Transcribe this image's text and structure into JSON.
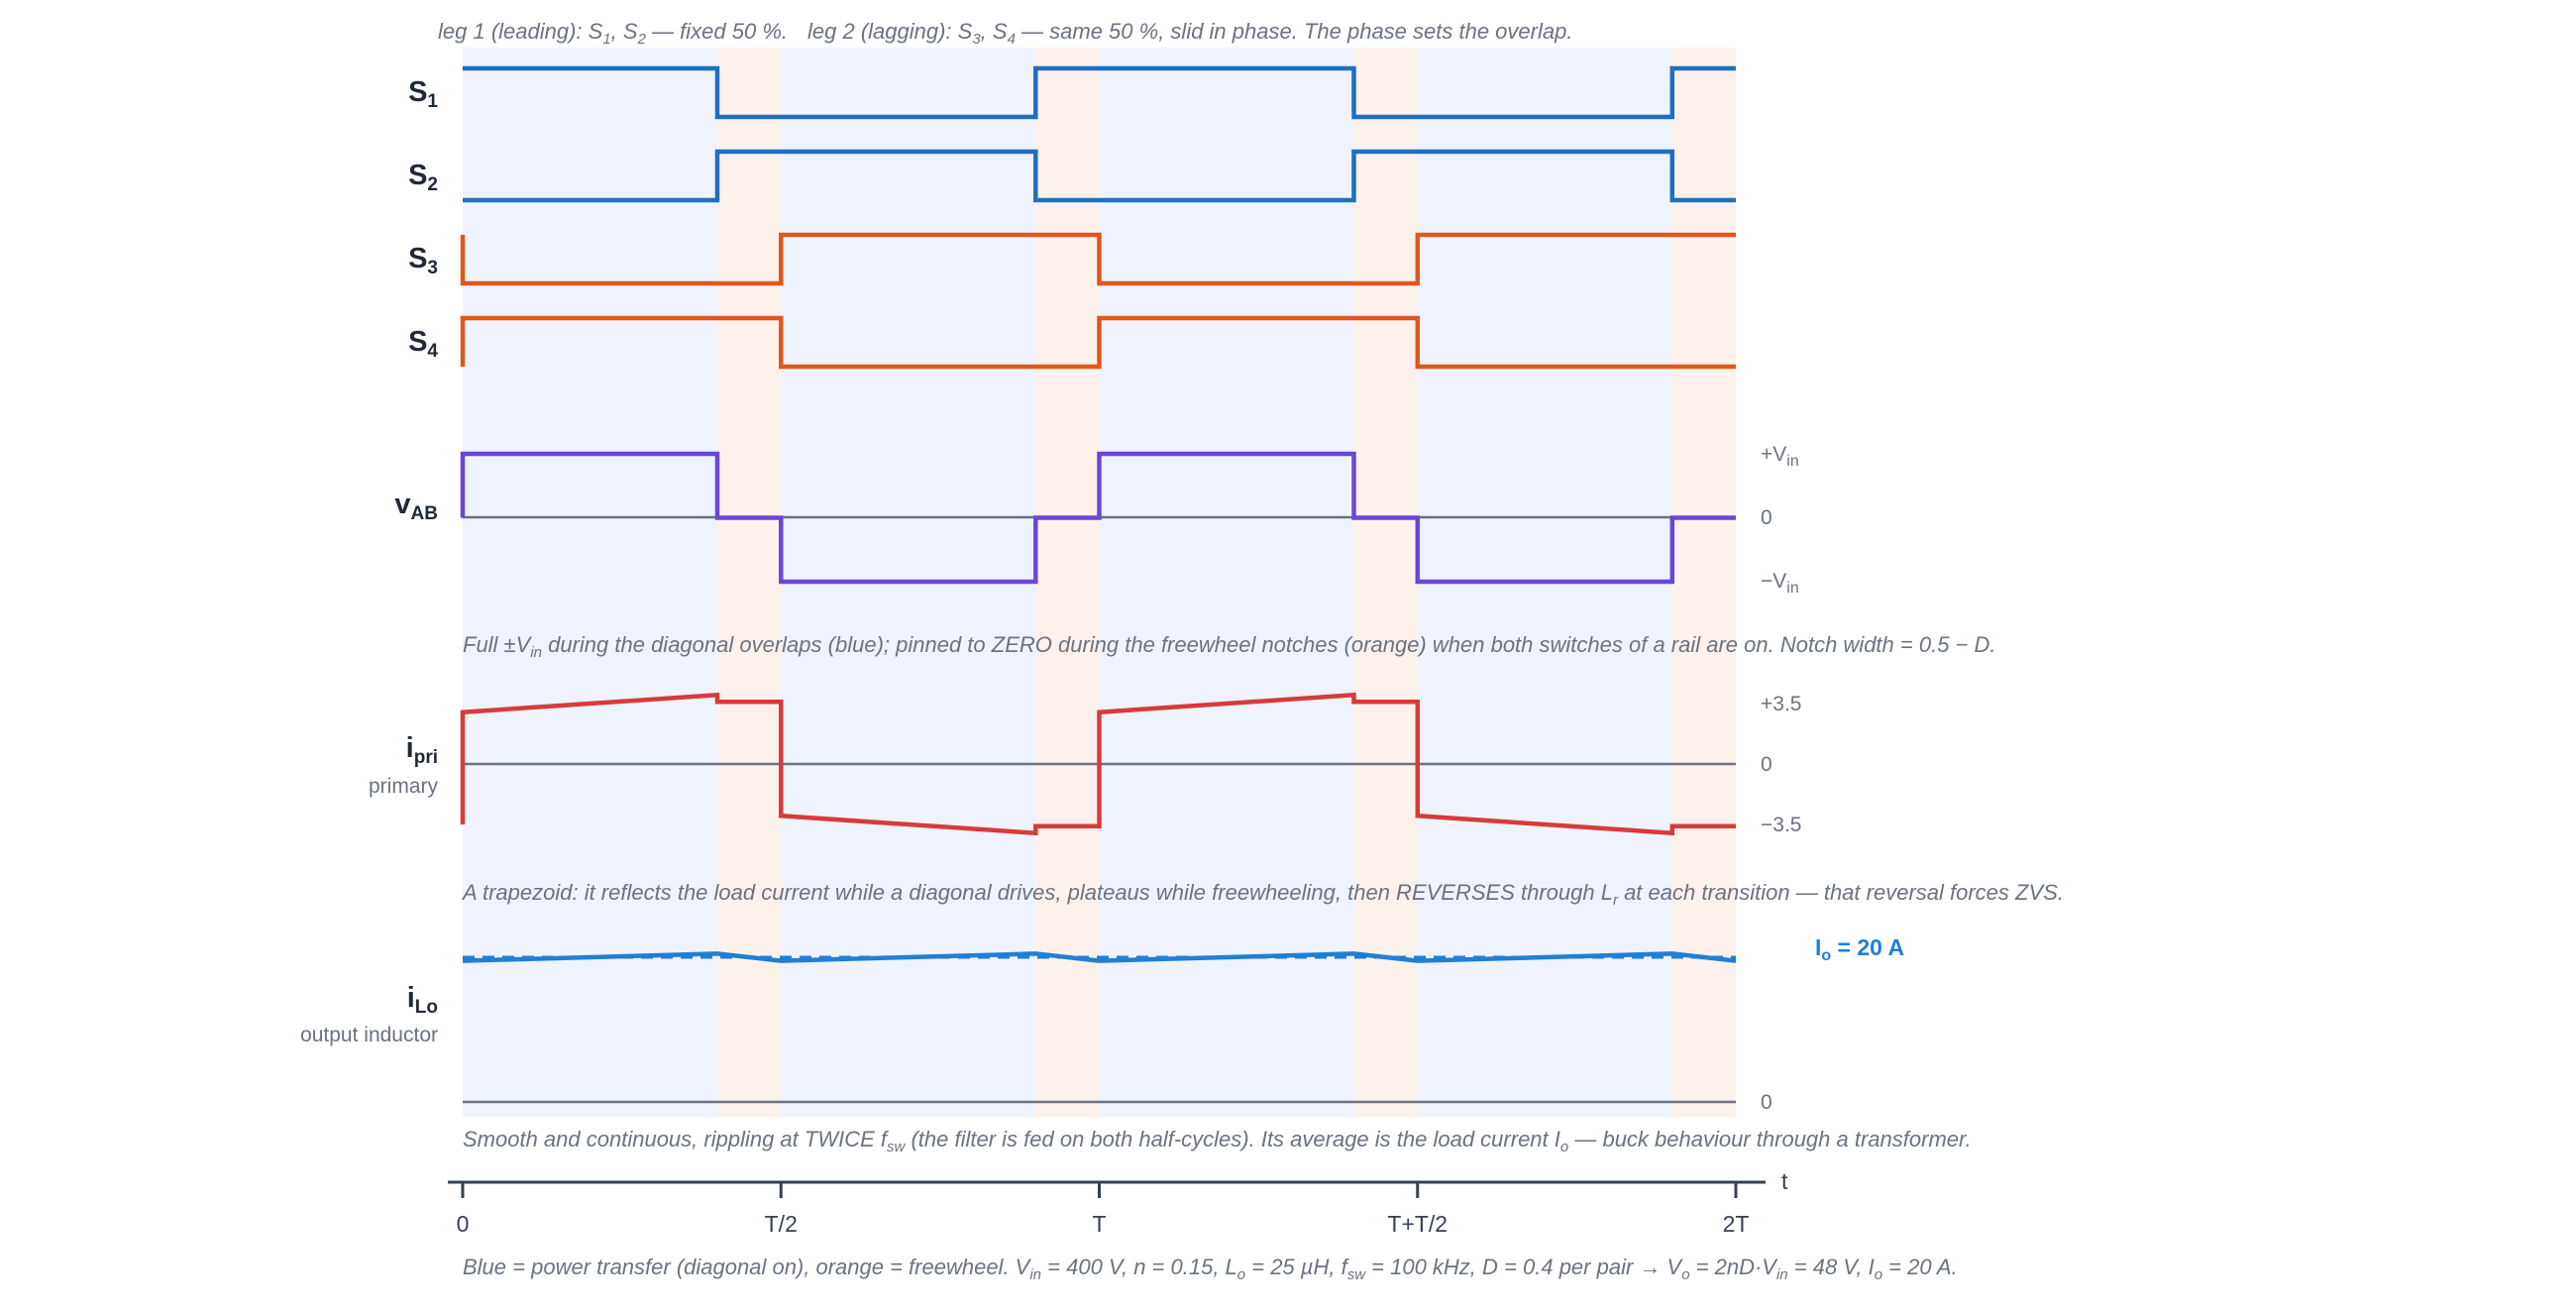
{
  "figure": {
    "notes": {
      "top": {
        "a": "leg 1 (leading): S",
        "a_s1": "1",
        "a_mid": ", S",
        "a_s2": "2",
        "a_end": " — fixed 50 %.",
        "b": "leg 2 (lagging): S",
        "b_s3": "3",
        "b_mid": ", S",
        "b_s4": "4",
        "b_end": " — same 50 %, slid in phase. The phase sets the overlap."
      },
      "vab": {
        "a": "Full ±V",
        "sub": "in",
        "b": " during the diagonal overlaps (blue); pinned to ZERO during the freewheel notches (orange) when both switches of a rail are on. Notch width = 0.5 − D."
      },
      "ipri": {
        "a": "A trapezoid: it reflects the load current while a diagonal drives, plateaus while freewheeling, then REVERSES through L",
        "sub": "r",
        "b": " at each transition — that reversal forces ZVS."
      },
      "ilo": {
        "a": "Smooth and continuous, rippling at TWICE f",
        "sub1": "sw",
        "b": " (the filter is fed on both half-cycles). Its average is the load current I",
        "sub2": "o",
        "c": " — buck behaviour through a transformer."
      },
      "bottom": {
        "a": "Blue = power transfer (diagonal on), orange = freewheel. V",
        "s1": "in",
        "b": " = 400 V, n = 0.15, L",
        "s2": "o",
        "c": " = 25 µH, f",
        "s3": "sw",
        "d": " = 100 kHz, D = 0.4 per pair → V",
        "s4": "o",
        "e": " = 2nD·V",
        "s5": "in",
        "f": " = 48 V, I",
        "s6": "o",
        "g": " = 20 A."
      }
    },
    "rows": {
      "s1": {
        "main": "S",
        "sub": "1"
      },
      "s2": {
        "main": "S",
        "sub": "2"
      },
      "s3": {
        "main": "S",
        "sub": "3"
      },
      "s4": {
        "main": "S",
        "sub": "4"
      },
      "vab": {
        "main": "v",
        "sub": "AB"
      },
      "ipri": {
        "main": "i",
        "sub": "pri",
        "caption": "primary"
      },
      "ilo": {
        "main": "i",
        "sub": "Lo",
        "caption": "output inductor"
      }
    },
    "ticks": {
      "vab": {
        "pos_main": "+V",
        "pos_sub": "in",
        "zero": "0",
        "neg_main": "−V",
        "neg_sub": "in"
      },
      "ipri": {
        "pos": "+3.5",
        "zero": "0",
        "neg": "−3.5"
      },
      "ilo": {
        "zero": "0",
        "avg_main": "I",
        "avg_sub": "o",
        "avg_rest": " = 20 A"
      }
    },
    "x_axis": {
      "label": "t",
      "ticks": [
        "0",
        "T/2",
        "T",
        "T+T/2",
        "2T"
      ]
    }
  },
  "chart_data": {
    "type": "line",
    "x_unit": "T (switching period)",
    "xlim": [
      0,
      2
    ],
    "x_ticks": [
      0,
      0.5,
      1,
      1.5,
      2
    ],
    "x_tick_labels": [
      "0",
      "T/2",
      "T",
      "T+T/2",
      "2T"
    ],
    "shading": {
      "power_transfer": {
        "color": "#eef3fd",
        "intervals": [
          [
            0,
            0.4
          ],
          [
            0.5,
            0.9
          ],
          [
            1.0,
            1.4
          ],
          [
            1.5,
            1.9
          ]
        ]
      },
      "freewheel": {
        "color": "#fdf1ec",
        "intervals": [
          [
            0.4,
            0.5
          ],
          [
            0.9,
            1.0
          ],
          [
            1.4,
            1.5
          ],
          [
            1.9,
            2.0
          ]
        ]
      }
    },
    "series": [
      {
        "name": "S1",
        "color": "#1f6fbf",
        "step": true,
        "x": [
          0,
          0.4,
          0.4,
          0.9,
          0.9,
          1.4,
          1.4,
          1.9,
          1.9,
          2.0
        ],
        "y": [
          1,
          1,
          0,
          0,
          1,
          1,
          0,
          0,
          1,
          1
        ]
      },
      {
        "name": "S2",
        "color": "#1f6fbf",
        "step": true,
        "x": [
          0,
          0.4,
          0.4,
          0.9,
          0.9,
          1.4,
          1.4,
          1.9,
          1.9,
          2.0
        ],
        "y": [
          0,
          0,
          1,
          1,
          0,
          0,
          1,
          1,
          0,
          0
        ]
      },
      {
        "name": "S3",
        "color": "#e0571c",
        "step": true,
        "x": [
          0,
          0,
          0.5,
          0.5,
          1.0,
          1.0,
          1.5,
          1.5,
          2.0
        ],
        "y": [
          1,
          0,
          0,
          1,
          1,
          0,
          0,
          1,
          1
        ]
      },
      {
        "name": "S4",
        "color": "#e0571c",
        "step": true,
        "x": [
          0,
          0,
          0.5,
          0.5,
          1.0,
          1.0,
          1.5,
          1.5,
          2.0
        ],
        "y": [
          0,
          1,
          1,
          0,
          0,
          1,
          1,
          0,
          0
        ]
      },
      {
        "name": "vAB",
        "color": "#6b46d6",
        "y_unit": "Vin",
        "x": [
          0,
          0,
          0.4,
          0.4,
          0.5,
          0.5,
          0.9,
          0.9,
          1.0,
          1.0,
          1.4,
          1.4,
          1.5,
          1.5,
          1.9,
          1.9,
          2.0
        ],
        "y": [
          0,
          1,
          1,
          0,
          0,
          -1,
          -1,
          0,
          0,
          1,
          1,
          0,
          0,
          -1,
          -1,
          0,
          0
        ]
      },
      {
        "name": "ipri",
        "color": "#d93a3a",
        "y_unit": "A",
        "x": [
          0,
          0,
          0.4,
          0.4,
          0.5,
          0.5,
          0.9,
          0.9,
          1.0,
          1.0,
          1.4,
          1.4,
          1.5,
          1.5,
          1.9,
          1.9,
          2.0
        ],
        "y": [
          -3.5,
          3.0,
          4.0,
          3.6,
          3.6,
          -3.0,
          -4.0,
          -3.6,
          -3.6,
          3.0,
          4.0,
          3.6,
          3.6,
          -3.0,
          -4.0,
          -3.6,
          -3.6
        ]
      },
      {
        "name": "iLo",
        "color": "#1f7fd6",
        "y_unit": "A",
        "x": [
          0,
          0.4,
          0.5,
          0.9,
          1.0,
          1.4,
          1.5,
          1.9,
          2.0
        ],
        "y": [
          19.5,
          20.5,
          19.5,
          20.5,
          19.5,
          20.5,
          19.5,
          20.5,
          19.5
        ]
      },
      {
        "name": "Io average",
        "color": "#1f7fd6",
        "dashed": true,
        "x": [
          0,
          2
        ],
        "y": [
          20,
          20
        ]
      }
    ]
  }
}
